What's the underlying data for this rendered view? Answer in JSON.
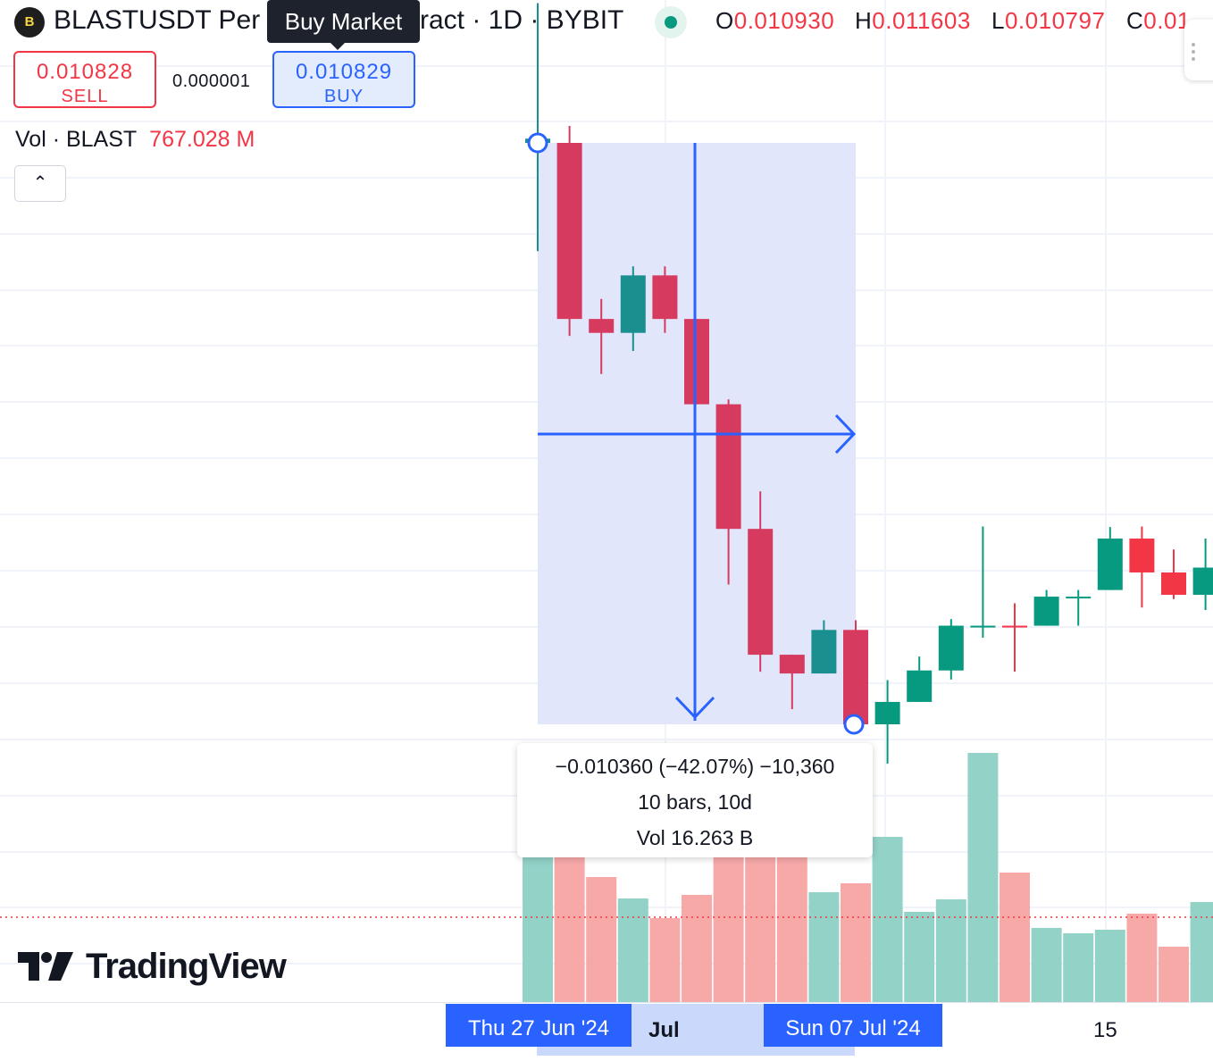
{
  "header": {
    "logo_letter": "B",
    "title": "BLASTUSDT Per",
    "title_right": "ract · 1D · BYBIT",
    "tooltip": "Buy Market",
    "ohlc": {
      "o_label": "O",
      "o_value": "0.010930",
      "h_label": "H",
      "h_value": "0.011603",
      "l_label": "L",
      "l_value": "0.010797",
      "c_label": "C",
      "c_value": "0.01"
    },
    "status_color": "#089981"
  },
  "trade": {
    "sell_price": "0.010828",
    "sell_label": "SELL",
    "spread": "0.000001",
    "buy_price": "0.010829",
    "buy_label": "BUY"
  },
  "volume_legend": {
    "label": "Vol · BLAST",
    "value": "767.028 M"
  },
  "collapse_icon": "chevron-up-icon",
  "measure_tool": {
    "change": "−0.010360 (−42.07%) −10,360",
    "bars": "10 bars, 10d",
    "volume": "Vol 16.263 B",
    "start_date": "Thu 27 Jun '24",
    "end_date": "Sun 07 Jul '24"
  },
  "x_axis": {
    "month_label": "Jul",
    "tick_15": "15"
  },
  "brand": "TradingView",
  "colors": {
    "up": "#089981",
    "down": "#f23645",
    "up_vol": "#92d2c7",
    "down_vol": "#f7a9a8",
    "measure_fill": "#dfe5fb",
    "measure_line": "#2962ff"
  },
  "chart_data": {
    "type": "candlestick",
    "note_units": "price in USDT",
    "candles": [
      {
        "o": 0.02462,
        "h": 0.02693,
        "l": 0.02283,
        "c": 0.02469,
        "dir": "up"
      },
      {
        "o": 0.02462,
        "h": 0.0249,
        "l": 0.02143,
        "c": 0.02171,
        "dir": "down"
      },
      {
        "o": 0.02171,
        "h": 0.02204,
        "l": 0.0208,
        "c": 0.02148,
        "dir": "down"
      },
      {
        "o": 0.02148,
        "h": 0.02258,
        "l": 0.02118,
        "c": 0.02243,
        "dir": "up"
      },
      {
        "o": 0.02243,
        "h": 0.02258,
        "l": 0.02148,
        "c": 0.02171,
        "dir": "down"
      },
      {
        "o": 0.02171,
        "h": 0.02171,
        "l": 0.0203,
        "c": 0.0203,
        "dir": "down"
      },
      {
        "o": 0.0203,
        "h": 0.02038,
        "l": 0.01732,
        "c": 0.01824,
        "dir": "down"
      },
      {
        "o": 0.01824,
        "h": 0.01886,
        "l": 0.01588,
        "c": 0.01616,
        "dir": "down"
      },
      {
        "o": 0.01616,
        "h": 0.01616,
        "l": 0.01526,
        "c": 0.01585,
        "dir": "down"
      },
      {
        "o": 0.01585,
        "h": 0.01673,
        "l": 0.01585,
        "c": 0.01657,
        "dir": "up"
      },
      {
        "o": 0.01657,
        "h": 0.01673,
        "l": 0.01501,
        "c": 0.01501,
        "dir": "down"
      },
      {
        "o": 0.01501,
        "h": 0.01574,
        "l": 0.01436,
        "c": 0.01538,
        "dir": "up"
      },
      {
        "o": 0.01538,
        "h": 0.01613,
        "l": 0.01538,
        "c": 0.0159,
        "dir": "up"
      },
      {
        "o": 0.0159,
        "h": 0.01675,
        "l": 0.01575,
        "c": 0.01664,
        "dir": "up"
      },
      {
        "o": 0.01664,
        "h": 0.01828,
        "l": 0.01644,
        "c": 0.01664,
        "dir": "up"
      },
      {
        "o": 0.01664,
        "h": 0.01701,
        "l": 0.01588,
        "c": 0.01664,
        "dir": "down"
      },
      {
        "o": 0.01664,
        "h": 0.01723,
        "l": 0.01664,
        "c": 0.01712,
        "dir": "up"
      },
      {
        "o": 0.01712,
        "h": 0.01723,
        "l": 0.01664,
        "c": 0.01712,
        "dir": "up"
      },
      {
        "o": 0.01723,
        "h": 0.01827,
        "l": 0.01723,
        "c": 0.01808,
        "dir": "up"
      },
      {
        "o": 0.01808,
        "h": 0.01828,
        "l": 0.01694,
        "c": 0.01752,
        "dir": "down"
      },
      {
        "o": 0.01752,
        "h": 0.0179,
        "l": 0.01708,
        "c": 0.01715,
        "dir": "down"
      },
      {
        "o": 0.01715,
        "h": 0.01808,
        "l": 0.0169,
        "c": 0.0176,
        "dir": "up"
      }
    ],
    "volumes": [
      {
        "v": 1.65,
        "dir": "up"
      },
      {
        "v": 1.65,
        "dir": "down"
      },
      {
        "v": 1.4,
        "dir": "down"
      },
      {
        "v": 1.16,
        "dir": "up"
      },
      {
        "v": 0.94,
        "dir": "down"
      },
      {
        "v": 1.2,
        "dir": "down"
      },
      {
        "v": 1.65,
        "dir": "down"
      },
      {
        "v": 1.65,
        "dir": "down"
      },
      {
        "v": 1.65,
        "dir": "down"
      },
      {
        "v": 1.23,
        "dir": "up"
      },
      {
        "v": 1.33,
        "dir": "down"
      },
      {
        "v": 1.85,
        "dir": "up"
      },
      {
        "v": 1.01,
        "dir": "up"
      },
      {
        "v": 1.15,
        "dir": "up"
      },
      {
        "v": 2.79,
        "dir": "up"
      },
      {
        "v": 1.45,
        "dir": "down"
      },
      {
        "v": 0.83,
        "dir": "up"
      },
      {
        "v": 0.77,
        "dir": "up"
      },
      {
        "v": 0.81,
        "dir": "up"
      },
      {
        "v": 0.99,
        "dir": "down"
      },
      {
        "v": 0.62,
        "dir": "down"
      },
      {
        "v": 1.12,
        "dir": "up"
      }
    ],
    "measure": {
      "start_index": 0,
      "end_index": 10,
      "start_price": 0.02462,
      "end_price": 0.01501
    },
    "price_range": [
      0.0115,
      0.0272
    ],
    "grid": true
  }
}
